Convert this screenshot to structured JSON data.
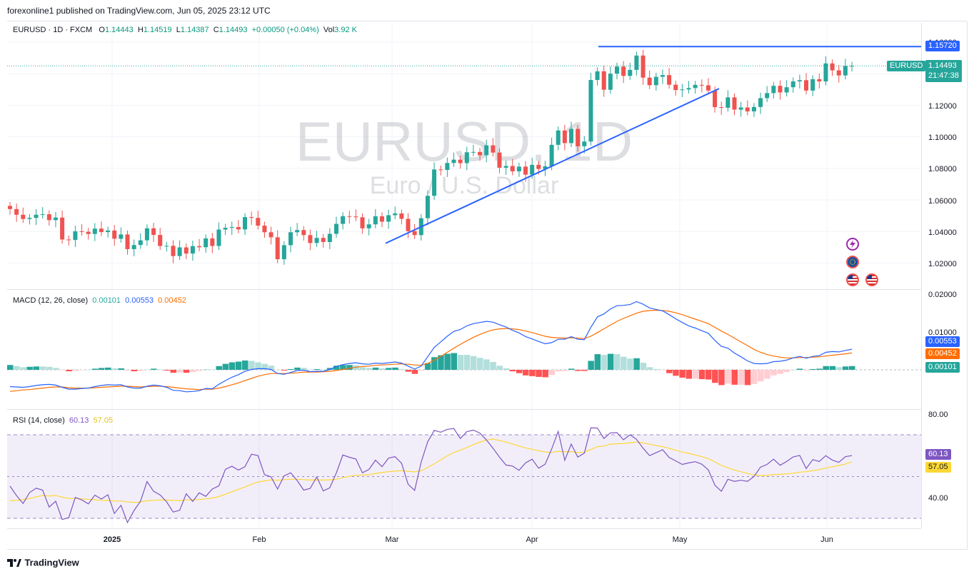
{
  "header": {
    "published": "forexonline1 published on TradingView.com, Jun 05, 2025 23:12 UTC",
    "symbol_line": "EURUSD · 1D · FXCM",
    "o_label": "O",
    "o_value": "1.14443",
    "h_label": "H",
    "h_value": "1.14519",
    "l_label": "L",
    "l_value": "1.14387",
    "c_label": "C",
    "c_value": "1.14493",
    "change": "+0.00050 (+0.04%)",
    "vol_label": "Vol",
    "vol_value": "3.92 K"
  },
  "watermark": {
    "symbol": "EURUSD, 1D",
    "name": "Euro / U.S. Dollar"
  },
  "colors": {
    "up": "#26a69a",
    "down": "#ef5350",
    "trendline": "#2962ff",
    "macd": "#2962ff",
    "signal": "#ff6d00",
    "rsi": "#7e57c2",
    "rsi_ma": "#fdd835",
    "brand": "#131722"
  },
  "price_axis": {
    "labels": [
      "1.16000",
      "1.12000",
      "1.10000",
      "1.08000",
      "1.06000",
      "1.04000",
      "1.02000"
    ],
    "level_tag": "1.15720",
    "symbol_tag": "EURUSD",
    "last_tag": "1.14493",
    "countdown": "21:47:38"
  },
  "macd": {
    "title": "MACD (12, 26, close)",
    "hist": "0.00101",
    "macd": "0.00553",
    "signal": "0.00452",
    "axis": [
      "0.02000",
      "0.01000"
    ]
  },
  "rsi": {
    "title": "RSI (14, close)",
    "value": "60.13",
    "ma": "57.05",
    "axis": [
      "80.00",
      "40.00"
    ]
  },
  "time_axis": [
    "2025",
    "Feb",
    "Mar",
    "Apr",
    "May",
    "Jun"
  ],
  "footer": {
    "brand": "TradingView"
  },
  "chart_data": {
    "type": "candlestick",
    "title": "EURUSD · 1D · FXCM",
    "y_range": [
      1.012,
      1.168
    ],
    "horizontal_level": 1.1572,
    "trendline": [
      [
        1.0325,
        "2025-02-27"
      ],
      [
        1.1305,
        "2025-05-07"
      ]
    ],
    "x_labels": [
      "2025",
      "Feb",
      "Mar",
      "Apr",
      "May",
      "Jun"
    ],
    "closes": [
      1.0542,
      1.0506,
      1.0479,
      1.0486,
      1.0506,
      1.0509,
      1.0472,
      1.0488,
      1.0349,
      1.0346,
      1.0401,
      1.0398,
      1.0384,
      1.0418,
      1.0396,
      1.0406,
      1.0354,
      1.0381,
      1.0288,
      1.0314,
      1.0344,
      1.042,
      1.0378,
      1.0308,
      1.0309,
      1.0244,
      1.0299,
      1.026,
      1.0307,
      1.03,
      1.0356,
      1.0308,
      1.0412,
      1.0423,
      1.0428,
      1.0413,
      1.0491,
      1.0486,
      1.0437,
      1.0395,
      1.0363,
      1.0224,
      1.0313,
      1.0395,
      1.0409,
      1.0377,
      1.0327,
      1.0359,
      1.0333,
      1.0385,
      1.0448,
      1.0497,
      1.0495,
      1.049,
      1.042,
      1.0445,
      1.0496,
      1.0462,
      1.0503,
      1.0514,
      1.048,
      1.0402,
      1.0377,
      1.0484,
      1.0626,
      1.0793,
      1.079,
      1.0834,
      1.0855,
      1.0833,
      1.0902,
      1.0904,
      1.0883,
      1.0946,
      1.09,
      1.0804,
      1.0815,
      1.0781,
      1.0811,
      1.076,
      1.0822,
      1.0796,
      1.0813,
      1.0949,
      1.104,
      1.096,
      1.105,
      1.094,
      1.097,
      1.136,
      1.1415,
      1.1298,
      1.14,
      1.1445,
      1.1386,
      1.1424,
      1.1515,
      1.1375,
      1.1327,
      1.138,
      1.1391,
      1.133,
      1.1296,
      1.13,
      1.1309,
      1.1329,
      1.1326,
      1.1293,
      1.1188,
      1.1184,
      1.125,
      1.1172,
      1.1186,
      1.1161,
      1.1189,
      1.1245,
      1.1277,
      1.1323,
      1.1281,
      1.1314,
      1.1351,
      1.1359,
      1.1293,
      1.1365,
      1.1351,
      1.1465,
      1.1421,
      1.1389,
      1.1449,
      1.14493
    ],
    "macd": [
      -0.0045,
      -0.0046,
      -0.0047,
      -0.0045,
      -0.0042,
      -0.004,
      -0.0039,
      -0.0041,
      -0.0047,
      -0.0052,
      -0.0052,
      -0.005,
      -0.0049,
      -0.0045,
      -0.0042,
      -0.004,
      -0.0041,
      -0.004,
      -0.0046,
      -0.0049,
      -0.0049,
      -0.0044,
      -0.0041,
      -0.0043,
      -0.0047,
      -0.0055,
      -0.0056,
      -0.0059,
      -0.0058,
      -0.0056,
      -0.005,
      -0.0051,
      -0.0039,
      -0.0029,
      -0.002,
      -0.0013,
      -0.0004,
      0.0001,
      0.0003,
      0.0003,
      0.0001,
      -0.001,
      -0.0012,
      -0.0007,
      -0.0002,
      -0.0001,
      -0.0005,
      -0.0004,
      -0.0004,
      0.0001,
      0.0009,
      0.0014,
      0.0017,
      0.0019,
      0.0016,
      0.0015,
      0.0018,
      0.0017,
      0.0019,
      0.0021,
      0.0018,
      0.001,
      0.0002,
      0.001,
      0.0035,
      0.006,
      0.0075,
      0.009,
      0.0103,
      0.0108,
      0.0118,
      0.0124,
      0.0127,
      0.013,
      0.0128,
      0.0121,
      0.0115,
      0.0106,
      0.0099,
      0.0089,
      0.0083,
      0.0076,
      0.007,
      0.0073,
      0.0082,
      0.0082,
      0.0089,
      0.0082,
      0.0081,
      0.0114,
      0.0142,
      0.015,
      0.0163,
      0.0172,
      0.0173,
      0.0175,
      0.0183,
      0.0176,
      0.0166,
      0.0162,
      0.0158,
      0.0148,
      0.0137,
      0.0127,
      0.0118,
      0.0112,
      0.0105,
      0.0098,
      0.0079,
      0.0063,
      0.0058,
      0.0045,
      0.0035,
      0.0024,
      0.0017,
      0.0016,
      0.0017,
      0.0022,
      0.0023,
      0.0026,
      0.0032,
      0.0036,
      0.0031,
      0.0036,
      0.0038,
      0.0047,
      0.0049,
      0.0048,
      0.0052,
      0.00553
    ],
    "signal": [
      -0.0058,
      -0.0056,
      -0.0054,
      -0.0053,
      -0.0051,
      -0.0049,
      -0.0047,
      -0.0046,
      -0.0046,
      -0.0048,
      -0.0049,
      -0.0049,
      -0.0049,
      -0.0048,
      -0.0047,
      -0.0046,
      -0.0045,
      -0.0044,
      -0.0044,
      -0.0045,
      -0.0046,
      -0.0045,
      -0.0044,
      -0.0044,
      -0.0045,
      -0.0047,
      -0.0049,
      -0.0051,
      -0.0052,
      -0.0053,
      -0.0052,
      -0.0052,
      -0.0049,
      -0.0045,
      -0.004,
      -0.0035,
      -0.0029,
      -0.0023,
      -0.0017,
      -0.0013,
      -0.001,
      -0.001,
      -0.001,
      -0.0009,
      -0.0008,
      -0.0006,
      -0.0006,
      -0.0006,
      -0.0005,
      -0.0004,
      -0.0002,
      0.0001,
      0.0004,
      0.0007,
      0.0009,
      0.001,
      0.0012,
      0.0013,
      0.0014,
      0.0015,
      0.0016,
      0.0015,
      0.0013,
      0.0012,
      0.0017,
      0.0026,
      0.0036,
      0.0047,
      0.0058,
      0.0068,
      0.0078,
      0.0087,
      0.0095,
      0.0102,
      0.0107,
      0.011,
      0.0111,
      0.011,
      0.0108,
      0.0104,
      0.01,
      0.0095,
      0.009,
      0.0087,
      0.0086,
      0.0085,
      0.0086,
      0.0085,
      0.0084,
      0.009,
      0.01,
      0.011,
      0.012,
      0.013,
      0.0138,
      0.0145,
      0.0152,
      0.0157,
      0.0159,
      0.016,
      0.0159,
      0.0157,
      0.0153,
      0.0148,
      0.0142,
      0.0136,
      0.013,
      0.0124,
      0.0114,
      0.0104,
      0.0095,
      0.0085,
      0.0075,
      0.0065,
      0.0055,
      0.0047,
      0.0041,
      0.0037,
      0.0034,
      0.0032,
      0.0032,
      0.0033,
      0.0033,
      0.0034,
      0.0035,
      0.0037,
      0.0039,
      0.0041,
      0.0043,
      0.00452
    ],
    "rsi": [
      45.5,
      41.0,
      37.2,
      42.4,
      44.5,
      43.6,
      35.5,
      38.3,
      29.5,
      30.4,
      40.1,
      38.9,
      37.0,
      41.2,
      39.3,
      41.4,
      32.4,
      36.3,
      28.1,
      33.8,
      38.3,
      47.7,
      43.0,
      41.3,
      38.0,
      33.1,
      33.9,
      41.8,
      38.2,
      42.3,
      40.6,
      44.1,
      45.6,
      53.5,
      55.0,
      53.2,
      54.8,
      60.8,
      60.1,
      51.0,
      49.9,
      44.1,
      50.4,
      51.9,
      48.2,
      43.6,
      44.4,
      49.9,
      43.2,
      44.7,
      51.8,
      60.4,
      59.3,
      58.5,
      51.9,
      53.5,
      57.9,
      54.8,
      58.9,
      59.6,
      56.4,
      46.4,
      43.5,
      57.0,
      66.7,
      72.2,
      71.3,
      72.7,
      73.1,
      68.3,
      71.6,
      72.3,
      70.9,
      67.6,
      63.7,
      59.4,
      55.6,
      55.1,
      53.1,
      56.6,
      58.4,
      54.1,
      56.0,
      63.3,
      71.7,
      57.9,
      65.6,
      59.4,
      61.3,
      73.4,
      73.3,
      68.3,
      71.0,
      71.1,
      67.7,
      70.1,
      67.9,
      63.7,
      60.1,
      61.5,
      62.9,
      59.2,
      57.6,
      55.9,
      56.6,
      57.2,
      56.0,
      53.3,
      46.0,
      43.0,
      48.8,
      47.8,
      48.3,
      47.8,
      50.1,
      54.6,
      55.9,
      58.4,
      55.5,
      57.3,
      59.5,
      60.2,
      53.9,
      58.2,
      57.3,
      60.1,
      58.0,
      56.9,
      59.6,
      60.13
    ],
    "rsi_ma": [
      38.5,
      38.7,
      39.0,
      39.6,
      40.4,
      41.0,
      40.8,
      41.0,
      40.2,
      39.6,
      39.6,
      39.4,
      39.2,
      39.0,
      38.7,
      38.6,
      38.4,
      38.4,
      37.9,
      37.7,
      37.9,
      38.5,
      38.7,
      38.9,
      38.8,
      38.7,
      38.5,
      38.9,
      38.9,
      39.1,
      39.4,
      39.8,
      40.5,
      41.6,
      42.8,
      44.0,
      45.1,
      46.4,
      47.5,
      48.0,
      48.5,
      48.3,
      48.6,
      48.8,
      48.8,
      48.6,
      48.4,
      48.4,
      48.4,
      48.5,
      48.8,
      49.6,
      50.2,
      50.7,
      50.8,
      51.0,
      51.6,
      52.0,
      52.4,
      52.7,
      52.9,
      52.6,
      52.3,
      52.9,
      54.4,
      56.2,
      58.1,
      60.0,
      61.6,
      62.7,
      64.0,
      65.4,
      66.5,
      67.6,
      68.0,
      67.4,
      66.6,
      65.7,
      64.7,
      63.8,
      63.1,
      62.5,
      61.8,
      61.6,
      62.2,
      61.9,
      62.0,
      61.6,
      61.8,
      63.0,
      64.4,
      64.7,
      65.6,
      65.8,
      65.9,
      66.3,
      66.6,
      66.2,
      65.6,
      64.9,
      64.4,
      63.6,
      62.7,
      61.8,
      61.2,
      60.4,
      59.6,
      58.7,
      57.1,
      55.4,
      54.3,
      53.2,
      52.4,
      51.6,
      50.8,
      50.6,
      50.6,
      51.1,
      51.1,
      51.4,
      51.7,
      52.2,
      52.4,
      52.9,
      53.4,
      54.2,
      54.8,
      55.4,
      56.1,
      57.05
    ]
  }
}
